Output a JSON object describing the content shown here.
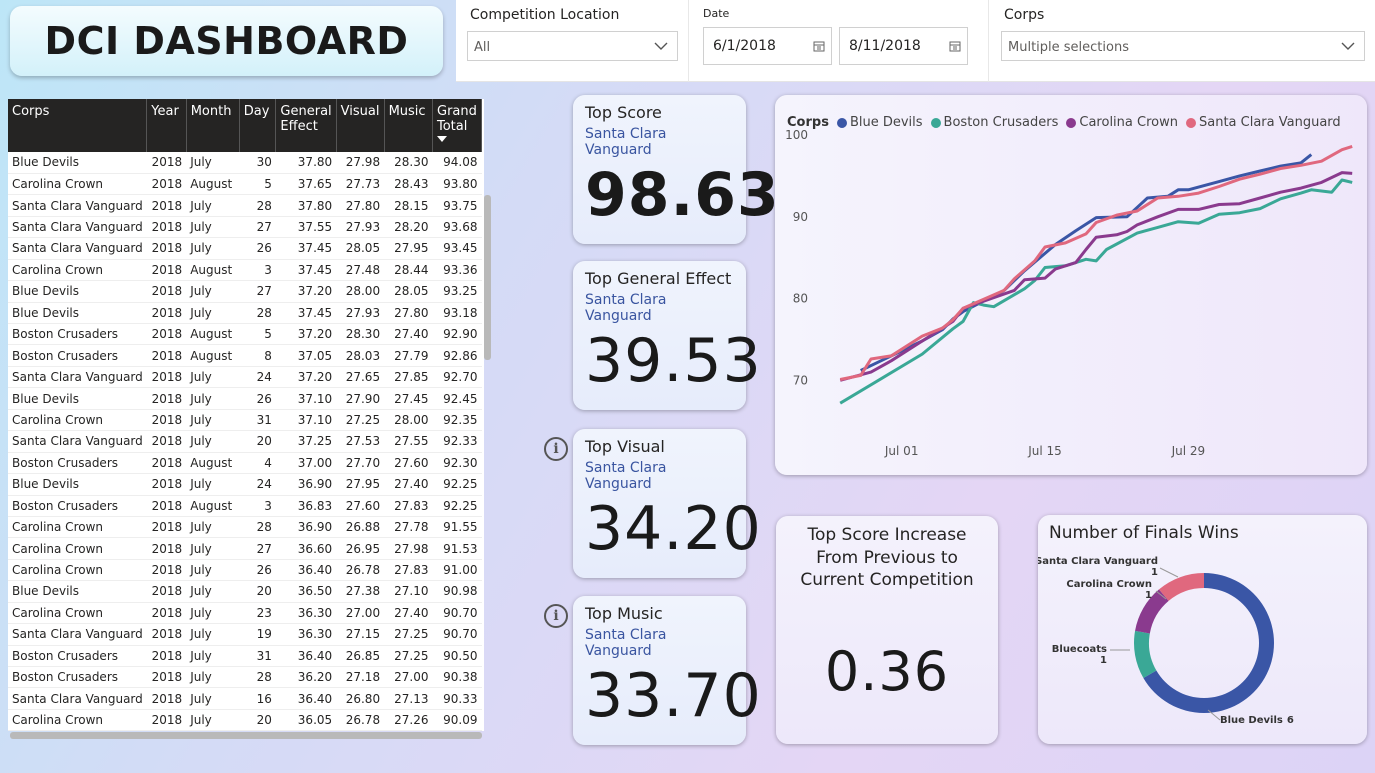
{
  "dashboard_title": "DCI DASHBOARD",
  "filters": {
    "location_label": "Competition Location",
    "location_value": "All",
    "date_label": "Date",
    "date_start": "6/1/2018",
    "date_end": "8/11/2018",
    "corps_label": "Corps",
    "corps_value": "Multiple selections"
  },
  "table": {
    "headers": [
      "Corps",
      "Year",
      "Month",
      "Day",
      "General Effect",
      "Visual",
      "Music",
      "Grand Total"
    ],
    "rows": [
      [
        "Blue Devils",
        "2018",
        "July",
        "30",
        "37.80",
        "27.98",
        "28.30",
        "94.08"
      ],
      [
        "Carolina Crown",
        "2018",
        "August",
        "5",
        "37.65",
        "27.73",
        "28.43",
        "93.80"
      ],
      [
        "Santa Clara Vanguard",
        "2018",
        "July",
        "28",
        "37.80",
        "27.80",
        "28.15",
        "93.75"
      ],
      [
        "Santa Clara Vanguard",
        "2018",
        "July",
        "27",
        "37.55",
        "27.93",
        "28.20",
        "93.68"
      ],
      [
        "Santa Clara Vanguard",
        "2018",
        "July",
        "26",
        "37.45",
        "28.05",
        "27.95",
        "93.45"
      ],
      [
        "Carolina Crown",
        "2018",
        "August",
        "3",
        "37.45",
        "27.48",
        "28.44",
        "93.36"
      ],
      [
        "Blue Devils",
        "2018",
        "July",
        "27",
        "37.20",
        "28.00",
        "28.05",
        "93.25"
      ],
      [
        "Blue Devils",
        "2018",
        "July",
        "28",
        "37.45",
        "27.93",
        "27.80",
        "93.18"
      ],
      [
        "Boston Crusaders",
        "2018",
        "August",
        "5",
        "37.20",
        "28.30",
        "27.40",
        "92.90"
      ],
      [
        "Boston Crusaders",
        "2018",
        "August",
        "8",
        "37.05",
        "28.03",
        "27.79",
        "92.86"
      ],
      [
        "Santa Clara Vanguard",
        "2018",
        "July",
        "24",
        "37.20",
        "27.65",
        "27.85",
        "92.70"
      ],
      [
        "Blue Devils",
        "2018",
        "July",
        "26",
        "37.10",
        "27.90",
        "27.45",
        "92.45"
      ],
      [
        "Carolina Crown",
        "2018",
        "July",
        "31",
        "37.10",
        "27.25",
        "28.00",
        "92.35"
      ],
      [
        "Santa Clara Vanguard",
        "2018",
        "July",
        "20",
        "37.25",
        "27.53",
        "27.55",
        "92.33"
      ],
      [
        "Boston Crusaders",
        "2018",
        "August",
        "4",
        "37.00",
        "27.70",
        "27.60",
        "92.30"
      ],
      [
        "Blue Devils",
        "2018",
        "July",
        "24",
        "36.90",
        "27.95",
        "27.40",
        "92.25"
      ],
      [
        "Boston Crusaders",
        "2018",
        "August",
        "3",
        "36.83",
        "27.60",
        "27.83",
        "92.25"
      ],
      [
        "Carolina Crown",
        "2018",
        "July",
        "28",
        "36.90",
        "26.88",
        "27.78",
        "91.55"
      ],
      [
        "Carolina Crown",
        "2018",
        "July",
        "27",
        "36.60",
        "26.95",
        "27.98",
        "91.53"
      ],
      [
        "Carolina Crown",
        "2018",
        "July",
        "26",
        "36.40",
        "26.78",
        "27.83",
        "91.00"
      ],
      [
        "Blue Devils",
        "2018",
        "July",
        "20",
        "36.50",
        "27.38",
        "27.10",
        "90.98"
      ],
      [
        "Carolina Crown",
        "2018",
        "July",
        "23",
        "36.30",
        "27.00",
        "27.40",
        "90.70"
      ],
      [
        "Santa Clara Vanguard",
        "2018",
        "July",
        "19",
        "36.30",
        "27.15",
        "27.25",
        "90.70"
      ],
      [
        "Boston Crusaders",
        "2018",
        "July",
        "31",
        "36.40",
        "26.85",
        "27.25",
        "90.50"
      ],
      [
        "Boston Crusaders",
        "2018",
        "July",
        "28",
        "36.20",
        "27.18",
        "27.00",
        "90.38"
      ],
      [
        "Santa Clara Vanguard",
        "2018",
        "July",
        "16",
        "36.40",
        "26.80",
        "27.13",
        "90.33"
      ],
      [
        "Carolina Crown",
        "2018",
        "July",
        "20",
        "36.05",
        "26.78",
        "27.26",
        "90.09"
      ]
    ]
  },
  "kpis": [
    {
      "title": "Top Score",
      "sub": "Santa Clara Vanguard",
      "value": "98.63"
    },
    {
      "title": "Top General Effect",
      "sub": "Santa Clara Vanguard",
      "value": "39.53"
    },
    {
      "title": "Top Visual",
      "sub": "Santa Clara Vanguard",
      "value": "34.20"
    },
    {
      "title": "Top Music",
      "sub": "Santa Clara Vanguard",
      "value": "33.70"
    }
  ],
  "increase": {
    "title_lines": [
      "Top Score Increase",
      "From Previous to",
      "Current Competition"
    ],
    "value": "0.36"
  },
  "colors": {
    "blue_devils": "#3a56a6",
    "boston_crusaders": "#3aa896",
    "carolina_crown": "#8a3a8e",
    "santa_clara_vanguard": "#e0687e",
    "bluecoats": "#3aa896"
  },
  "chart_data": [
    {
      "type": "line",
      "legend_title": "Corps",
      "legend_position": "top-left",
      "y_ticks": [
        70,
        80,
        90,
        100
      ],
      "ylim": [
        66,
        100
      ],
      "x_ticks": [
        "Jul 01",
        "Jul 15",
        "Jul 29"
      ],
      "x_range_days": [
        -7,
        43
      ],
      "x_tick_days": [
        0,
        14,
        28
      ],
      "series": [
        {
          "name": "Blue Devils",
          "color": "#3a56a6",
          "points": [
            [
              -4,
              71.2
            ],
            [
              -2,
              72.4
            ],
            [
              2,
              74.8
            ],
            [
              4,
              76.2
            ],
            [
              5,
              77.5
            ],
            [
              6,
              78.4
            ],
            [
              10,
              81.0
            ],
            [
              11,
              82.2
            ],
            [
              12,
              83.4
            ],
            [
              15,
              86.6
            ],
            [
              17,
              88.3
            ],
            [
              19,
              89.9
            ],
            [
              22,
              90.0
            ],
            [
              24,
              92.3
            ],
            [
              26,
              92.5
            ],
            [
              27,
              93.3
            ],
            [
              28,
              93.3
            ],
            [
              31,
              94.3
            ],
            [
              33,
              95.0
            ],
            [
              35,
              95.6
            ],
            [
              37,
              96.2
            ],
            [
              39,
              96.6
            ],
            [
              40,
              97.6
            ]
          ]
        },
        {
          "name": "Boston Crusaders",
          "color": "#3aa896",
          "points": [
            [
              -6,
              67.2
            ],
            [
              -2,
              70.2
            ],
            [
              2,
              73.2
            ],
            [
              5,
              76.3
            ],
            [
              6,
              77.2
            ],
            [
              7,
              79.5
            ],
            [
              8,
              79.2
            ],
            [
              9,
              79.0
            ],
            [
              12,
              81.2
            ],
            [
              13,
              82.2
            ],
            [
              14,
              83.8
            ],
            [
              16,
              84.0
            ],
            [
              18,
              84.8
            ],
            [
              19,
              84.6
            ],
            [
              20,
              86.0
            ],
            [
              23,
              88.0
            ],
            [
              25,
              88.7
            ],
            [
              27,
              89.4
            ],
            [
              29,
              89.2
            ],
            [
              31,
              90.3
            ],
            [
              33,
              90.5
            ],
            [
              35,
              91.0
            ],
            [
              37,
              92.2
            ],
            [
              39,
              92.9
            ],
            [
              40,
              93.3
            ],
            [
              42,
              93.0
            ],
            [
              43,
              94.5
            ],
            [
              44,
              94.2
            ]
          ]
        },
        {
          "name": "Carolina Crown",
          "color": "#8a3a8e",
          "points": [
            [
              -6,
              70.0
            ],
            [
              -3,
              71.0
            ],
            [
              -1,
              72.4
            ],
            [
              2,
              74.8
            ],
            [
              4,
              76.4
            ],
            [
              5,
              77.2
            ],
            [
              6,
              78.8
            ],
            [
              11,
              81.0
            ],
            [
              12,
              82.3
            ],
            [
              14,
              82.5
            ],
            [
              15,
              83.6
            ],
            [
              17,
              84.4
            ],
            [
              18,
              86.0
            ],
            [
              19,
              87.5
            ],
            [
              21,
              87.8
            ],
            [
              22,
              88.2
            ],
            [
              23,
              89.0
            ],
            [
              25,
              90.0
            ],
            [
              27,
              90.9
            ],
            [
              29,
              90.9
            ],
            [
              31,
              91.5
            ],
            [
              33,
              91.6
            ],
            [
              35,
              92.3
            ],
            [
              37,
              93.0
            ],
            [
              39,
              93.5
            ],
            [
              41,
              94.2
            ],
            [
              43,
              95.4
            ],
            [
              44,
              95.3
            ]
          ]
        },
        {
          "name": "Santa Clara Vanguard",
          "color": "#e0687e",
          "points": [
            [
              -6,
              70.1
            ],
            [
              -4,
              70.6
            ],
            [
              -3,
              72.6
            ],
            [
              -1,
              73.0
            ],
            [
              2,
              75.4
            ],
            [
              4,
              76.4
            ],
            [
              5,
              77.4
            ],
            [
              6,
              78.8
            ],
            [
              10,
              81.0
            ],
            [
              11,
              82.4
            ],
            [
              13,
              84.6
            ],
            [
              14,
              86.3
            ],
            [
              16,
              86.8
            ],
            [
              18,
              87.9
            ],
            [
              19,
              89.3
            ],
            [
              21,
              90.2
            ],
            [
              23,
              90.7
            ],
            [
              25,
              92.3
            ],
            [
              27,
              92.5
            ],
            [
              29,
              92.9
            ],
            [
              31,
              93.7
            ],
            [
              33,
              94.6
            ],
            [
              35,
              95.2
            ],
            [
              37,
              95.9
            ],
            [
              39,
              96.3
            ],
            [
              41,
              96.8
            ],
            [
              43,
              98.2
            ],
            [
              44,
              98.6
            ]
          ]
        }
      ]
    },
    {
      "type": "pie",
      "title": "Number of Finals Wins",
      "slices": [
        {
          "label": "Blue Devils",
          "value": 6,
          "color": "#3a56a6"
        },
        {
          "label": "Bluecoats",
          "value": 1,
          "color": "#3aa896"
        },
        {
          "label": "Carolina Crown",
          "value": 1,
          "color": "#8a3a8e"
        },
        {
          "label": "Santa Clara Vanguard",
          "value": 1,
          "color": "#e0687e"
        }
      ]
    }
  ]
}
